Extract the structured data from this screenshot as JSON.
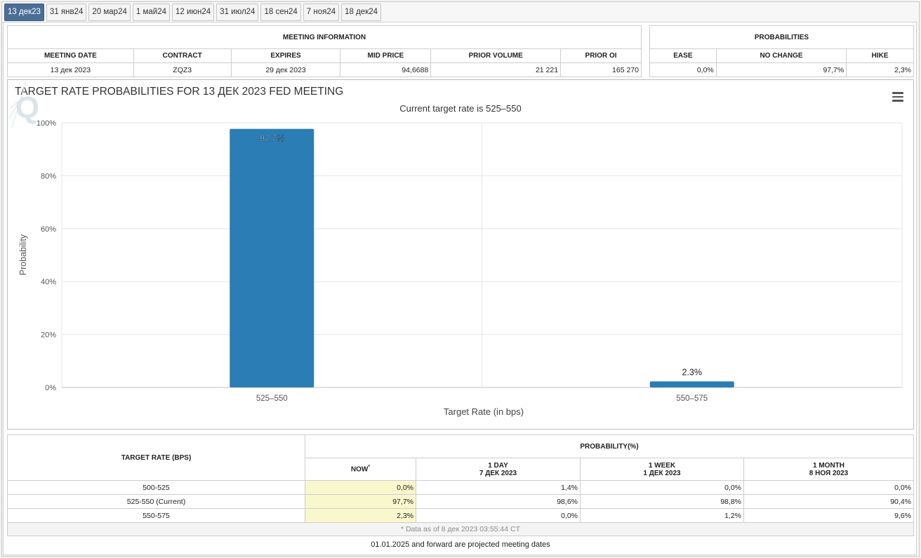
{
  "tabs": [
    "13 дек23",
    "31 янв24",
    "20 мар24",
    "1 май24",
    "12 июн24",
    "31 июл24",
    "18 сен24",
    "7 ноя24",
    "18 дек24"
  ],
  "active_tab": 0,
  "meeting_info": {
    "title": "MEETING INFORMATION",
    "headers": [
      "MEETING DATE",
      "CONTRACT",
      "EXPIRES",
      "MID PRICE",
      "PRIOR VOLUME",
      "PRIOR OI"
    ],
    "values": [
      "13 дек 2023",
      "ZQZ3",
      "29 дек 2023",
      "94,6688",
      "21 221",
      "165 270"
    ]
  },
  "probabilities": {
    "title": "PROBABILITIES",
    "headers": [
      "EASE",
      "NO CHANGE",
      "HIKE"
    ],
    "values": [
      "0,0%",
      "97,7%",
      "2,3%"
    ]
  },
  "chart_data": {
    "type": "bar",
    "title": "TARGET RATE PROBABILITIES FOR 13 ДЕК 2023 FED MEETING",
    "subtitle": "Current target rate is 525–550",
    "xlabel": "Target Rate (in bps)",
    "ylabel": "Probability",
    "categories": [
      "525–550",
      "550–575"
    ],
    "values": [
      97.7,
      2.3
    ],
    "data_labels": [
      "97.7%",
      "2.3%"
    ],
    "ylim": [
      0,
      100
    ],
    "yticks": [
      0,
      20,
      40,
      60,
      80,
      100
    ],
    "ytick_labels": [
      "0%",
      "20%",
      "40%",
      "60%",
      "80%",
      "100%"
    ],
    "bar_color": "#2a7db5",
    "grid": true
  },
  "prob_table": {
    "col_rate": "TARGET RATE (BPS)",
    "col_prob": "PROBABILITY(%)",
    "now": "NOW",
    "now_mark": "*",
    "d1_a": "1 DAY",
    "d1_b": "7 ДЕК 2023",
    "w1_a": "1 WEEK",
    "w1_b": "1 ДЕК 2023",
    "m1_a": "1 MONTH",
    "m1_b": "8 НОЯ 2023",
    "rows": [
      {
        "rate": "500-525",
        "now": "0,0%",
        "d1": "1,4%",
        "w1": "0,0%",
        "m1": "0,0%"
      },
      {
        "rate": "525-550 (Current)",
        "now": "97,7%",
        "d1": "98,6%",
        "w1": "98,8%",
        "m1": "90,4%"
      },
      {
        "rate": "550-575",
        "now": "2,3%",
        "d1": "0,0%",
        "w1": "1,2%",
        "m1": "9,6%"
      }
    ],
    "note": "* Data as of 8 дек 2023 03:55:44 CT"
  },
  "footer": "01.01.2025 and forward are projected meeting dates"
}
